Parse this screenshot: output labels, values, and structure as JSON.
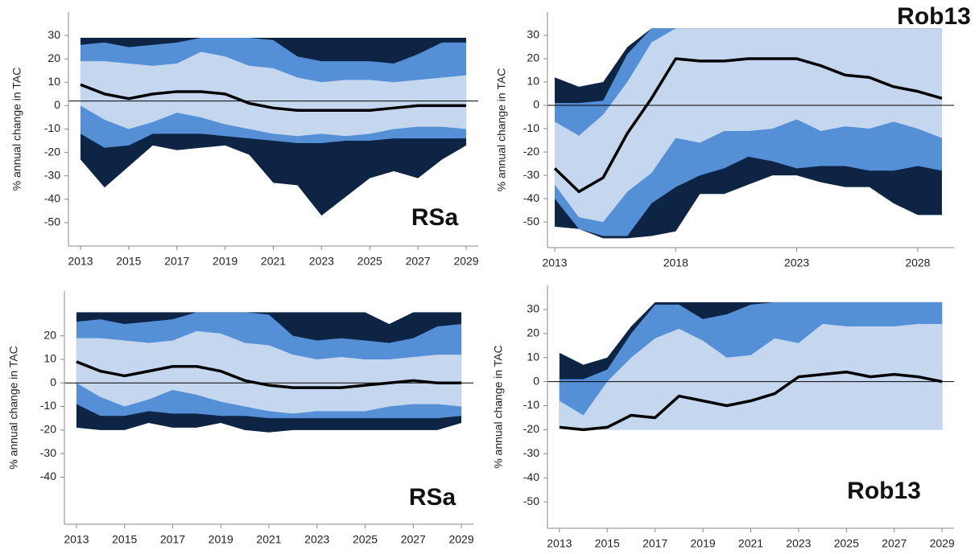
{
  "chart_data": [
    {
      "type": "band",
      "label": "RSa",
      "ylabel": "% annual change in TAC",
      "x": [
        2013,
        2014,
        2015,
        2016,
        2017,
        2018,
        2019,
        2020,
        2021,
        2022,
        2023,
        2024,
        2025,
        2026,
        2027,
        2028,
        2029
      ],
      "xticks": [
        2013,
        2015,
        2017,
        2019,
        2021,
        2023,
        2025,
        2027,
        2029
      ],
      "xlim": [
        2012.5,
        2029.5
      ],
      "ylim": [
        -60,
        40
      ],
      "yticks": [
        30,
        20,
        10,
        0,
        -10,
        -20,
        -30,
        -40,
        -50
      ],
      "ref_line": 2,
      "bands": [
        {
          "color": "#0d2445",
          "upper": [
            29,
            29,
            29,
            29,
            29,
            29,
            29,
            29,
            29,
            29,
            29,
            29,
            29,
            29,
            29,
            29,
            29
          ],
          "lower": [
            -23,
            -35,
            -26,
            -17,
            -19,
            -18,
            -17,
            -21,
            -33,
            -34,
            -47,
            -39,
            -31,
            -28,
            -31,
            -23,
            -17
          ]
        },
        {
          "color": "#5590d6",
          "upper": [
            26,
            27,
            25,
            26,
            27,
            29,
            29,
            29,
            28,
            21,
            19,
            19,
            19,
            18,
            22,
            27,
            27
          ],
          "lower": [
            -12,
            -18,
            -17,
            -12,
            -12,
            -12,
            -13,
            -14,
            -15,
            -16,
            -16,
            -15,
            -15,
            -14,
            -14,
            -14,
            -14
          ]
        },
        {
          "color": "#c5d7ef",
          "upper": [
            19,
            19,
            18,
            17,
            18,
            23,
            21,
            17,
            16,
            12,
            10,
            11,
            11,
            10,
            11,
            12,
            13
          ],
          "lower": [
            0,
            -6,
            -10,
            -7,
            -3,
            -5,
            -8,
            -10,
            -12,
            -13,
            -12,
            -13,
            -12,
            -10,
            -9,
            -9,
            -10
          ]
        }
      ],
      "line": {
        "color": "#000000",
        "values": [
          9,
          5,
          3,
          5,
          6,
          6,
          5,
          1,
          -1,
          -2,
          -2,
          -2,
          -2,
          -1,
          0,
          0,
          0
        ]
      }
    },
    {
      "type": "band",
      "label": "Rob13",
      "ylabel": "% annual change in TAC",
      "x": [
        2013,
        2014,
        2015,
        2016,
        2017,
        2018,
        2019,
        2020,
        2021,
        2022,
        2023,
        2024,
        2025,
        2026,
        2027,
        2028,
        2029
      ],
      "xticks": [
        2013,
        2018,
        2023,
        2028
      ],
      "xlim": [
        2012.7,
        2029.5
      ],
      "ylim": [
        -61,
        40
      ],
      "yticks": [
        30,
        20,
        10,
        0,
        -10,
        -20,
        -30,
        -40,
        -50
      ],
      "ref_line": 0,
      "bands": [
        {
          "color": "#0d2445",
          "upper": [
            12,
            8,
            10,
            25,
            33,
            33,
            33,
            33,
            33,
            33,
            33,
            33,
            33,
            33,
            33,
            33,
            33
          ],
          "lower": [
            -52,
            -53,
            -57,
            -57,
            -56,
            -54,
            -38,
            -38,
            -34,
            -30,
            -30,
            -33,
            -35,
            -35,
            -42,
            -47,
            -47
          ]
        },
        {
          "color": "#5590d6",
          "upper": [
            1,
            1,
            2,
            22,
            33,
            33,
            33,
            33,
            33,
            33,
            33,
            33,
            33,
            33,
            33,
            28,
            29
          ],
          "lower": [
            -40,
            -53,
            -56,
            -56,
            -42,
            -35,
            -30,
            -27,
            -22,
            -24,
            -27,
            -26,
            -26,
            -28,
            -28,
            -26,
            -28
          ]
        },
        {
          "color": "#c5d7ef",
          "upper": [
            -7,
            -13,
            -4,
            10,
            27,
            33,
            33,
            33,
            33,
            33,
            33,
            33,
            33,
            33,
            33,
            33,
            33
          ],
          "lower": [
            -34,
            -48,
            -50,
            -37,
            -29,
            -14,
            -16,
            -11,
            -11,
            -10,
            -6,
            -11,
            -9,
            -10,
            -7,
            -10,
            -14
          ]
        }
      ],
      "line": {
        "color": "#000000",
        "values": [
          -27,
          -37,
          -31,
          -12,
          3,
          20,
          19,
          19,
          20,
          20,
          20,
          17,
          13,
          12,
          8,
          6,
          3
        ]
      }
    },
    {
      "type": "band",
      "label": "RSa",
      "ylabel": "% annual change in TAC",
      "x": [
        2013,
        2014,
        2015,
        2016,
        2017,
        2018,
        2019,
        2020,
        2021,
        2022,
        2023,
        2024,
        2025,
        2026,
        2027,
        2028,
        2029
      ],
      "xticks": [
        2013,
        2015,
        2017,
        2019,
        2021,
        2023,
        2025,
        2027,
        2029
      ],
      "xlim": [
        2012.5,
        2029.5
      ],
      "ylim": [
        -60,
        39
      ],
      "yticks": [
        20,
        10,
        0,
        -10,
        -20,
        -30,
        -40
      ],
      "ref_line": 0,
      "bands": [
        {
          "color": "#0d2445",
          "upper": [
            30,
            30,
            30,
            30,
            30,
            30,
            30,
            30,
            30,
            30,
            30,
            30,
            30,
            25,
            30,
            30,
            30
          ],
          "lower": [
            -19,
            -20,
            -20,
            -17,
            -19,
            -19,
            -17,
            -20,
            -21,
            -20,
            -20,
            -20,
            -20,
            -20,
            -20,
            -20,
            -17
          ]
        },
        {
          "color": "#5590d6",
          "upper": [
            26,
            27,
            25,
            26,
            27,
            30,
            30,
            30,
            29,
            20,
            18,
            19,
            18,
            17,
            19,
            24,
            25
          ],
          "lower": [
            -9,
            -14,
            -14,
            -12,
            -13,
            -13,
            -14,
            -14,
            -15,
            -15,
            -15,
            -15,
            -15,
            -15,
            -15,
            -15,
            -14
          ]
        },
        {
          "color": "#c5d7ef",
          "upper": [
            19,
            19,
            18,
            17,
            18,
            22,
            21,
            17,
            16,
            12,
            10,
            11,
            10,
            10,
            11,
            12,
            12
          ],
          "lower": [
            0,
            -6,
            -10,
            -7,
            -3,
            -5,
            -8,
            -10,
            -12,
            -13,
            -12,
            -12,
            -12,
            -10,
            -9,
            -9,
            -10
          ]
        }
      ],
      "line": {
        "color": "#000000",
        "values": [
          9,
          5,
          3,
          5,
          7,
          7,
          5,
          1,
          -1,
          -2,
          -2,
          -2,
          -1,
          0,
          1,
          0,
          0
        ]
      }
    },
    {
      "type": "band",
      "label": "Rob13",
      "ylabel": "% annual change in TAC",
      "x": [
        2013,
        2014,
        2015,
        2016,
        2017,
        2018,
        2019,
        2020,
        2021,
        2022,
        2023,
        2024,
        2025,
        2026,
        2027,
        2028,
        2029
      ],
      "xticks": [
        2013,
        2015,
        2017,
        2019,
        2021,
        2023,
        2025,
        2027,
        2029
      ],
      "xlim": [
        2012.5,
        2029.5
      ],
      "ylim": [
        -61,
        40
      ],
      "yticks": [
        30,
        20,
        10,
        0,
        -10,
        -20,
        -30,
        -40,
        -50
      ],
      "ref_line": 0,
      "bands": [
        {
          "color": "#0d2445",
          "upper": [
            12,
            7,
            10,
            23,
            33,
            33,
            33,
            33,
            33,
            33,
            33,
            33,
            33,
            33,
            33,
            33,
            33
          ],
          "lower": [
            -19,
            -20,
            -20,
            -20,
            -20,
            -20,
            -20,
            -20,
            -20,
            -20,
            -20,
            -20,
            -20,
            -20,
            -20,
            -20,
            -20
          ]
        },
        {
          "color": "#5590d6",
          "upper": [
            1,
            1,
            5,
            20,
            32,
            32,
            26,
            28,
            32,
            33,
            33,
            33,
            33,
            33,
            33,
            33,
            33
          ],
          "lower": [
            -19,
            -20,
            -20,
            -20,
            -20,
            -20,
            -20,
            -20,
            -20,
            -20,
            -20,
            -20,
            -20,
            -20,
            -20,
            -20,
            -20
          ]
        },
        {
          "color": "#c5d7ef",
          "upper": [
            -8,
            -14,
            0,
            10,
            18,
            22,
            17,
            10,
            11,
            18,
            16,
            24,
            23,
            23,
            23,
            24,
            24
          ],
          "lower": [
            -19,
            -20,
            -20,
            -20,
            -20,
            -20,
            -20,
            -20,
            -20,
            -20,
            -20,
            -20,
            -20,
            -20,
            -20,
            -20,
            -20
          ]
        }
      ],
      "line": {
        "color": "#000000",
        "values": [
          -19,
          -20,
          -19,
          -14,
          -15,
          -6,
          -8,
          -10,
          -8,
          -5,
          2,
          3,
          4,
          2,
          3,
          2,
          0
        ]
      }
    }
  ]
}
